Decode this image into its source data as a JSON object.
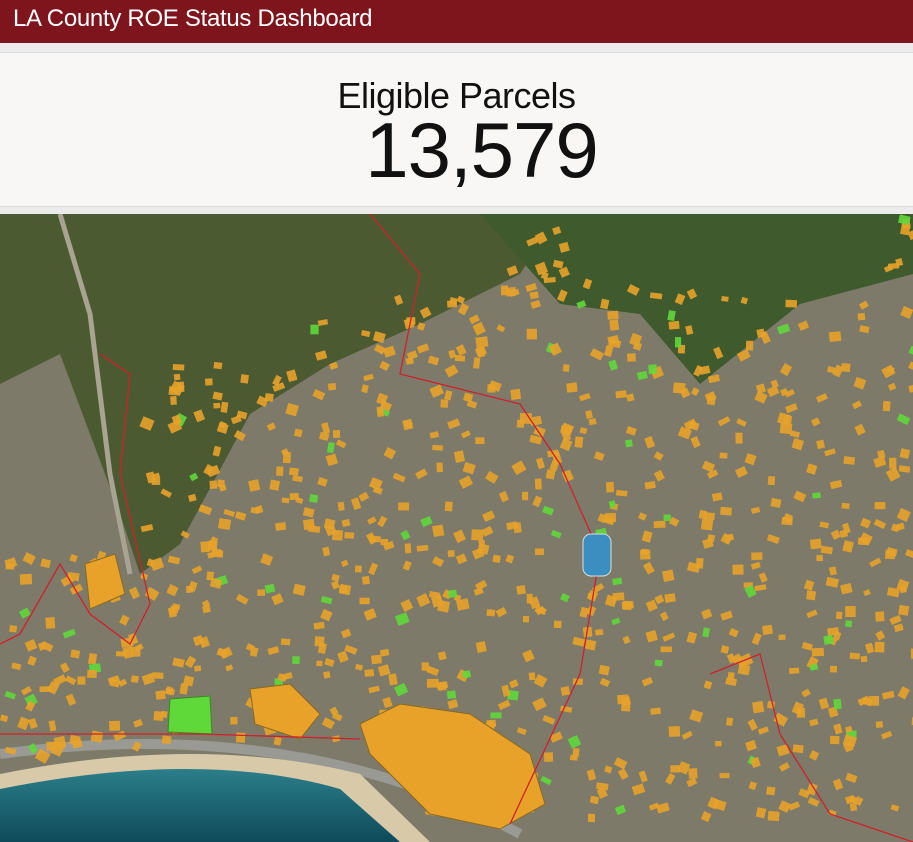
{
  "header": {
    "title": "LA County ROE Status Dashboard"
  },
  "indicator": {
    "title": "Eligible Parcels",
    "value": "13,579"
  },
  "map": {
    "basemap": "satellite-imagery",
    "colors": {
      "parcel_eligible": "#e8a22a",
      "parcel_complete": "#5fd83a",
      "boundary": "#d0202a",
      "header_bg": "#7f151c"
    }
  }
}
